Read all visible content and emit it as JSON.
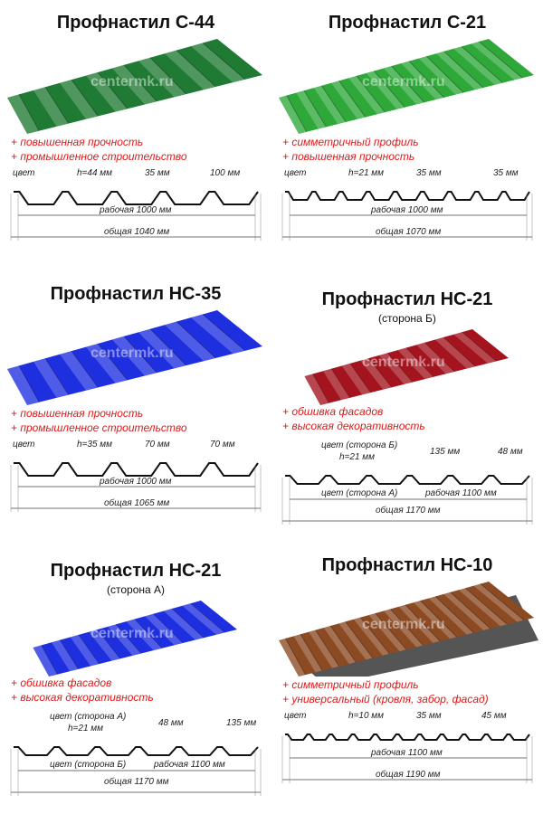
{
  "watermark": "centermk.ru",
  "panels": [
    {
      "title": "Профнастил С-44",
      "subtitle": "",
      "color": "#1f7a33",
      "bullets": [
        "+ повышенная прочность",
        "+ промышленное строительство"
      ],
      "labels": {
        "color": "цвет",
        "height": "h=44 мм",
        "dim1": "35 мм",
        "dim2": "100 мм",
        "working": "рабочая 1000 мм",
        "total": "общая 1040 мм"
      }
    },
    {
      "title": "Профнастил С-21",
      "subtitle": "",
      "color": "#2fa83a",
      "bullets": [
        "+ симметричный профиль",
        "+ повышенная прочность"
      ],
      "labels": {
        "color": "цвет",
        "height": "h=21 мм",
        "dim1": "35 мм",
        "dim2": "35 мм",
        "working": "рабочая 1000 мм",
        "total": "общая 1070 мм"
      }
    },
    {
      "title": "Профнастил НС-35",
      "subtitle": "",
      "color": "#1e2fe0",
      "bullets": [
        "+ повышенная прочность",
        "+ промышленное строительство"
      ],
      "labels": {
        "color": "цвет",
        "height": "h=35 мм",
        "dim1": "70 мм",
        "dim2": "70 мм",
        "working": "рабочая 1000 мм",
        "total": "общая 1065 мм"
      }
    },
    {
      "title": "Профнастил НС-21",
      "subtitle": "(сторона Б)",
      "color": "#a3141e",
      "bullets": [
        "+ обшивка фасадов",
        "+ высокая декоративность"
      ],
      "labels": {
        "color": "цвет (сторона Б)",
        "color2": "цвет (сторона А)",
        "height": "h=21 мм",
        "dim1": "135 мм",
        "dim2": "48 мм",
        "working": "рабочая 1100 мм",
        "total": "общая 1170 мм"
      }
    },
    {
      "title": "Профнастил НС-21",
      "subtitle": "(сторона А)",
      "color": "#1e2fe0",
      "bullets": [
        "+ обшивка фасадов",
        "+ высокая декоративность"
      ],
      "labels": {
        "color": "цвет (сторона А)",
        "color2": "цвет (сторона Б)",
        "height": "h=21 мм",
        "dim1": "48 мм",
        "dim2": "135 мм",
        "working": "рабочая 1100 мм",
        "total": "общая 1170 мм"
      }
    },
    {
      "title": "Профнастил НС-10",
      "subtitle": "",
      "color": "#8b4a22",
      "bullets": [
        "+ симметричный профиль",
        "+ универсальный (кровля, забор, фасад)"
      ],
      "labels": {
        "color": "цвет",
        "height": "h=10 мм",
        "dim1": "35 мм",
        "dim2": "45 мм",
        "working": "рабочая 1100 мм",
        "total": "общая 1190 мм"
      }
    }
  ]
}
